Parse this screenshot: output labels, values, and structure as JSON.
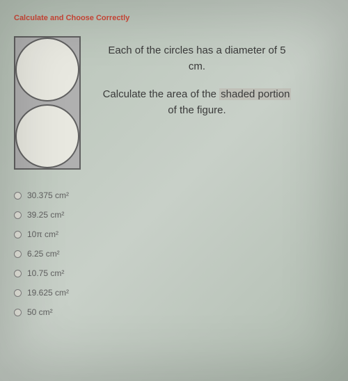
{
  "title": "Calculate and Choose Correctly",
  "description": {
    "line1": "Each of the circles has a diameter of 5 cm.",
    "line2_before": "Calculate the area of the ",
    "line2_highlight": "shaded portion",
    "line2_after": " of the figure."
  },
  "figure": {
    "type": "rectangle-with-circles",
    "rect_width_cm": 5,
    "rect_height_cm": 10,
    "circle_diameter_cm": 5,
    "circle_count": 2,
    "shaded_color": "#b0b0b0",
    "circle_fill": "#e8e8e0",
    "border_color": "#606060"
  },
  "options": [
    {
      "label": "30.375 cm²"
    },
    {
      "label": "39.25 cm²"
    },
    {
      "label": "10π cm²"
    },
    {
      "label": "6.25 cm²"
    },
    {
      "label": "10.75 cm²"
    },
    {
      "label": "19.625 cm²"
    },
    {
      "label": "50 cm²"
    }
  ],
  "colors": {
    "title_color": "#d04838",
    "text_color": "#3a3a3a",
    "option_color": "#606060",
    "background_gradient": [
      "#b8c4b8",
      "#c8d0c8",
      "#b0bcb0"
    ]
  }
}
